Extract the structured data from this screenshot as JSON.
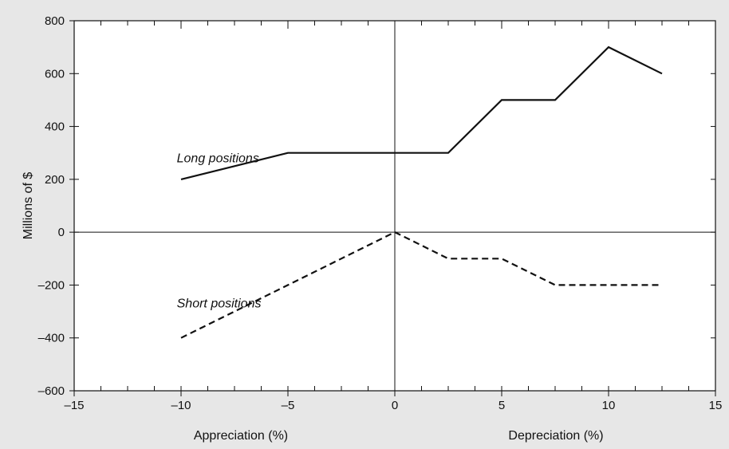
{
  "chart_data": {
    "type": "line",
    "x": [
      -10,
      -5,
      0,
      2.5,
      5,
      7.5,
      10,
      12.5
    ],
    "series": [
      {
        "name": "Long positions",
        "values": [
          200,
          300,
          300,
          300,
          500,
          500,
          700,
          600
        ],
        "color": "#111111",
        "dash": "solid"
      },
      {
        "name": "Short positions",
        "values": [
          -400,
          -200,
          0,
          -100,
          -100,
          -200,
          -200,
          -200
        ],
        "color": "#111111",
        "dash": "dashed"
      }
    ],
    "xlim": [
      -15,
      15
    ],
    "ylim": [
      -600,
      800
    ],
    "x_ticks": [
      -15,
      -10,
      -5,
      0,
      5,
      10,
      15
    ],
    "x_tick_labels": [
      "–15",
      "–10",
      "–5",
      "0",
      "5",
      "10",
      "15"
    ],
    "y_ticks": [
      -600,
      -400,
      -200,
      0,
      200,
      400,
      600,
      800
    ],
    "y_tick_labels": [
      "–600",
      "–400",
      "–200",
      "0",
      "200",
      "400",
      "600",
      "800"
    ],
    "x_minor_step": 1.25,
    "ylabel": "Millions of $",
    "xlabel_left": "Appreciation (%)",
    "xlabel_right": "Depreciation  (%)",
    "annotations": [
      {
        "text": "Long positions",
        "x": -10.2,
        "y": 265
      },
      {
        "text": "Short positions",
        "x": -10.2,
        "y": -285
      }
    ],
    "zero_lines": true,
    "grid": false,
    "legend": "none",
    "background": "#ffffff",
    "page_background": "#e7e7e7"
  }
}
